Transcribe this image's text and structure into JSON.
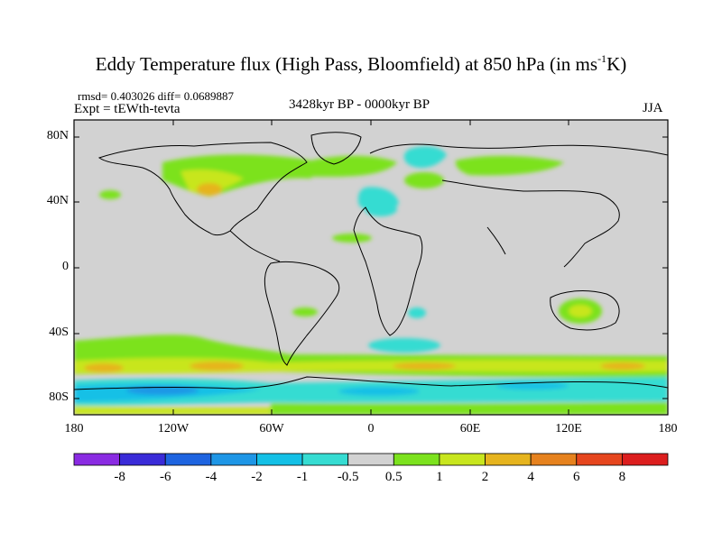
{
  "header": {
    "title_main": "Eddy Temperature flux (High Pass, Bloomfield) at 850 hPa (in ms",
    "title_sup": "-1",
    "title_end": "K)",
    "stats": "rmsd= 0.403026 diff= 0.0689887",
    "experiment": "Expt = tEWth-tevta",
    "period": "3428kyr BP - 0000kyr BP",
    "season": "JJA"
  },
  "axes": {
    "lat_ticks": [
      "80N",
      "40N",
      "0",
      "40S",
      "80S"
    ],
    "lon_ticks": [
      "180",
      "120W",
      "60W",
      "0",
      "60E",
      "120E",
      "180"
    ]
  },
  "colorbar": {
    "labels": [
      "-8",
      "-6",
      "-4",
      "-2",
      "-1",
      "-0.5",
      "0.5",
      "1",
      "2",
      "4",
      "6",
      "8"
    ],
    "colors": [
      "#8a2be2",
      "#3a2bd8",
      "#1e64e0",
      "#1e96e6",
      "#14c0e6",
      "#36dcd2",
      "#d2d2d2",
      "#7ce21e",
      "#c8e61e",
      "#e6b41e",
      "#e6821e",
      "#e6461e",
      "#dc1e1e"
    ]
  },
  "map": {
    "background_color": "#d2d2d2",
    "coastline_color": "#000000"
  }
}
